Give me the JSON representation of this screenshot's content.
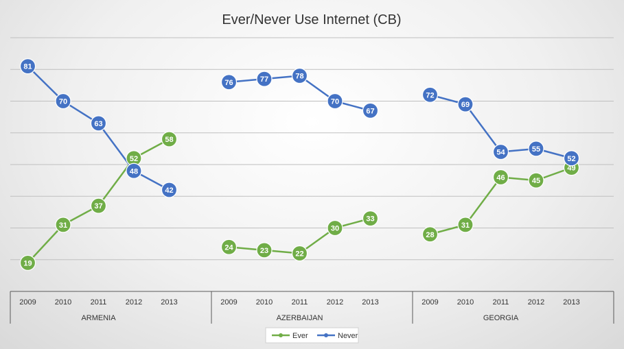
{
  "chart_data": {
    "type": "line",
    "title": "Ever/Never Use Internet (CB)",
    "xlabel": "",
    "ylabel": "",
    "ylim": [
      10,
      90
    ],
    "grid": true,
    "legend_position": "bottom",
    "groups": [
      {
        "name": "ARMENIA",
        "years": [
          "2009",
          "2010",
          "2011",
          "2012",
          "2013"
        ]
      },
      {
        "name": "AZERBAIJAN",
        "years": [
          "2009",
          "2010",
          "2011",
          "2012",
          "2013"
        ]
      },
      {
        "name": "GEORGIA",
        "years": [
          "2009",
          "2010",
          "2011",
          "2012",
          "2013"
        ]
      }
    ],
    "series": [
      {
        "name": "Ever",
        "color": "#70ad47",
        "values": [
          [
            19,
            31,
            37,
            52,
            58
          ],
          [
            24,
            23,
            22,
            30,
            33
          ],
          [
            28,
            31,
            46,
            45,
            49
          ]
        ]
      },
      {
        "name": "Never",
        "color": "#4472c4",
        "values": [
          [
            81,
            70,
            63,
            48,
            42
          ],
          [
            76,
            77,
            78,
            70,
            67
          ],
          [
            72,
            69,
            54,
            55,
            52
          ]
        ]
      }
    ]
  },
  "colors": {
    "grid": "#bfbfbf",
    "axis": "#595959"
  }
}
